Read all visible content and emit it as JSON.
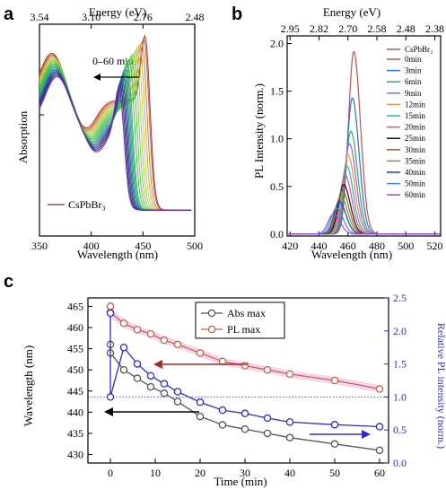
{
  "chart_data": [
    {
      "panel": "a",
      "type": "line",
      "xlabel": "Wavelength (nm)",
      "ylabel": "Absorption",
      "top_axis_label": "Energy (eV)",
      "top_ticks": [
        "3.54",
        "3.10",
        "2.76",
        "2.48"
      ],
      "top_tick_wavelengths": [
        350,
        400,
        450,
        500
      ],
      "xlim": [
        350,
        500
      ],
      "xticks": [
        350,
        400,
        450,
        500
      ],
      "annotation": "0–60 min",
      "annotation_direction": "left",
      "legend_entry": "CsPbBr₃",
      "peak_wavelengths_nm": [
        456,
        455,
        453,
        451,
        449,
        447,
        445,
        443,
        441,
        439,
        438,
        437,
        436,
        435,
        434,
        433,
        432,
        431,
        431
      ]
    },
    {
      "panel": "b",
      "type": "line",
      "xlabel": "Wavelength (nm)",
      "ylabel": "PL Intensity (norm.)",
      "top_axis_label": "Energy (eV)",
      "top_ticks": [
        "2.95",
        "2.82",
        "2.70",
        "2.58",
        "2.48",
        "2.38"
      ],
      "top_tick_wavelengths": [
        420,
        440,
        460,
        480,
        500,
        520
      ],
      "xlim": [
        418,
        524
      ],
      "ylim": [
        -0.02,
        2.08
      ],
      "xticks": [
        420,
        440,
        460,
        480,
        500,
        520
      ],
      "yticks": [
        0.0,
        0.5,
        1.0,
        1.5,
        2.0
      ],
      "legend_title": "CsPbBr₃",
      "series": [
        {
          "name": "0min",
          "color": "#c8504a",
          "peak": 464,
          "amp": 1.92
        },
        {
          "name": "3min",
          "color": "#2a6fd6",
          "peak": 463,
          "amp": 1.43
        },
        {
          "name": "6min",
          "color": "#33aa66",
          "peak": 462,
          "amp": 1.08
        },
        {
          "name": "9min",
          "color": "#a15cd8",
          "peak": 461,
          "amp": 0.95
        },
        {
          "name": "12min",
          "color": "#f0903a",
          "peak": 460,
          "amp": 0.83
        },
        {
          "name": "15min",
          "color": "#2ab3c4",
          "peak": 459,
          "amp": 0.72
        },
        {
          "name": "20min",
          "color": "#e54d8a",
          "peak": 458,
          "amp": 0.62
        },
        {
          "name": "25min",
          "color": "#111111",
          "peak": 457,
          "amp": 0.52
        },
        {
          "name": "30min",
          "color": "#a05a2c",
          "peak": 456,
          "amp": 0.46
        },
        {
          "name": "35min",
          "color": "#7b9a3a",
          "peak": 455,
          "amp": 0.4
        },
        {
          "name": "40min",
          "color": "#1c3fb8",
          "peak": 454,
          "amp": 0.34
        },
        {
          "name": "50min",
          "color": "#3a8ed6",
          "peak": 452,
          "amp": 0.27
        },
        {
          "name": "60min",
          "color": "#b040e0",
          "peak": 450,
          "amp": 0.21
        }
      ]
    },
    {
      "panel": "c",
      "type": "line",
      "xlabel": "Time (min)",
      "ylabel": "Wavelength (nm)",
      "y2label": "Relative PL intensity (norm.)",
      "xlim": [
        -5,
        62
      ],
      "ylim": [
        428,
        467
      ],
      "y2lim": [
        0.0,
        2.5
      ],
      "xticks": [
        0,
        10,
        20,
        30,
        40,
        50,
        60
      ],
      "yticks": [
        430,
        435,
        440,
        445,
        450,
        455,
        460,
        465
      ],
      "y2ticks": [
        "0.0",
        "0.5",
        "1.0",
        "1.5",
        "2.0",
        "2.5"
      ],
      "reference_line_y2": 1.0,
      "series": [
        {
          "name": "Abs max",
          "axis": "left",
          "color": "#555555",
          "x": [
            0,
            0,
            3,
            6,
            9,
            12,
            15,
            20,
            25,
            30,
            35,
            40,
            50,
            60
          ],
          "y": [
            456,
            454,
            450,
            448,
            446,
            444.5,
            442.5,
            439,
            437,
            436,
            435,
            434,
            432.5,
            431
          ]
        },
        {
          "name": "PL max",
          "axis": "left",
          "color": "#c0674a",
          "x": [
            0,
            0,
            3,
            6,
            9,
            12,
            15,
            20,
            25,
            30,
            35,
            40,
            50,
            60
          ],
          "y": [
            465,
            463.5,
            461,
            459.5,
            458.5,
            457,
            456,
            454,
            452,
            451,
            450,
            449,
            447.5,
            445.5
          ]
        },
        {
          "name": "",
          "axis": "right",
          "color": "#2c2ccc",
          "x": [
            0,
            0,
            3,
            6,
            9,
            12,
            15,
            20,
            25,
            30,
            35,
            40,
            50,
            60
          ],
          "y": [
            2.27,
            1.0,
            1.75,
            1.5,
            1.32,
            1.2,
            1.08,
            0.92,
            0.8,
            0.75,
            0.68,
            0.62,
            0.58,
            0.55
          ]
        }
      ]
    }
  ],
  "panel_letters": [
    "a",
    "b",
    "c"
  ]
}
